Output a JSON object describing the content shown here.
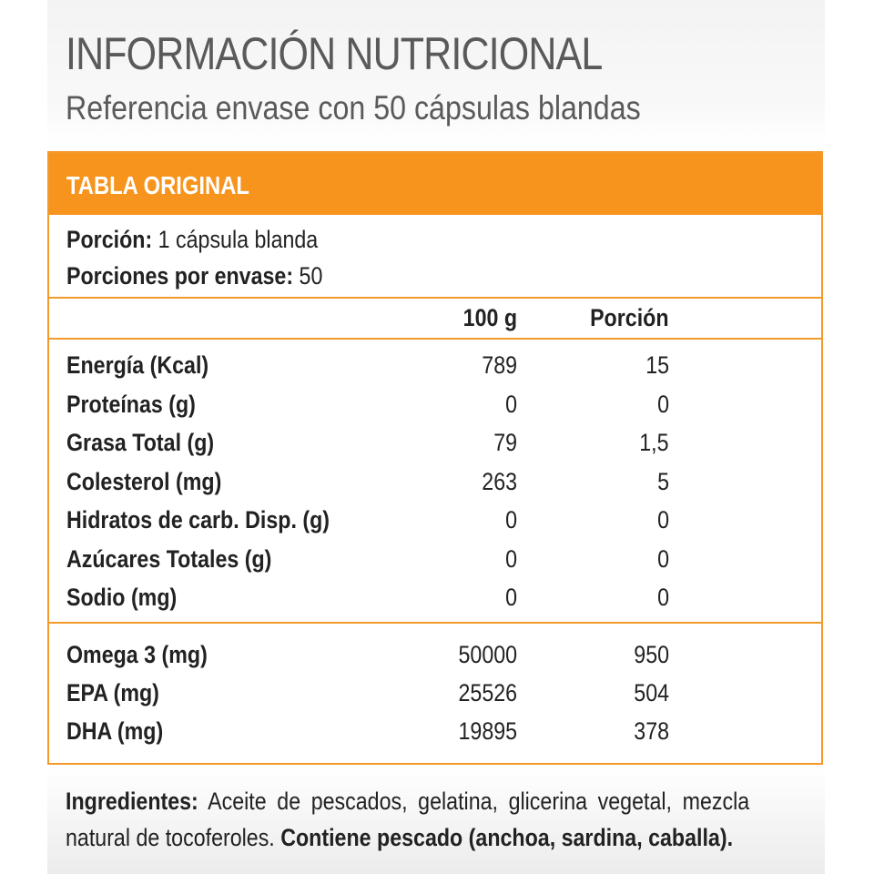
{
  "header": {
    "title": "INFORMACIÓN NUTRICIONAL",
    "subtitle": "Referencia envase con 50 cápsulas blandas"
  },
  "table": {
    "band_label": "TABLA ORIGINAL",
    "portion_label": "Porción:",
    "portion_value": "1 cápsula blanda",
    "servings_label": "Porciones por envase:",
    "servings_value": "50",
    "col_100g": "100 g",
    "col_portion": "Porción",
    "rows_main": [
      {
        "name": "Energía (Kcal)",
        "per100": "789",
        "portion": "15"
      },
      {
        "name": "Proteínas (g)",
        "per100": "0",
        "portion": "0"
      },
      {
        "name": "Grasa Total (g)",
        "per100": "79",
        "portion": "1,5"
      },
      {
        "name": "Colesterol (mg)",
        "per100": "263",
        "portion": "5"
      },
      {
        "name": "Hidratos de carb. Disp. (g)",
        "per100": "0",
        "portion": "0"
      },
      {
        "name": "Azúcares Totales (g)",
        "per100": "0",
        "portion": "0"
      },
      {
        "name": "Sodio (mg)",
        "per100": "0",
        "portion": "0"
      }
    ],
    "rows_omega": [
      {
        "name": "Omega 3 (mg)",
        "per100": "50000",
        "portion": "950"
      },
      {
        "name": "EPA (mg)",
        "per100": "25526",
        "portion": "504"
      },
      {
        "name": "DHA (mg)",
        "per100": "19895",
        "portion": "378"
      }
    ]
  },
  "ingredients": {
    "label": "Ingredientes:",
    "text_line1": "Aceite de pescados, gelatina, glicerina vegetal, mezcla",
    "text_line2": "natural de tocoferoles.",
    "contains": "Contiene pescado (anchoa,  sardina, caballa)."
  },
  "colors": {
    "accent": "#f7941d",
    "title_gray": "#5a5a5a"
  }
}
